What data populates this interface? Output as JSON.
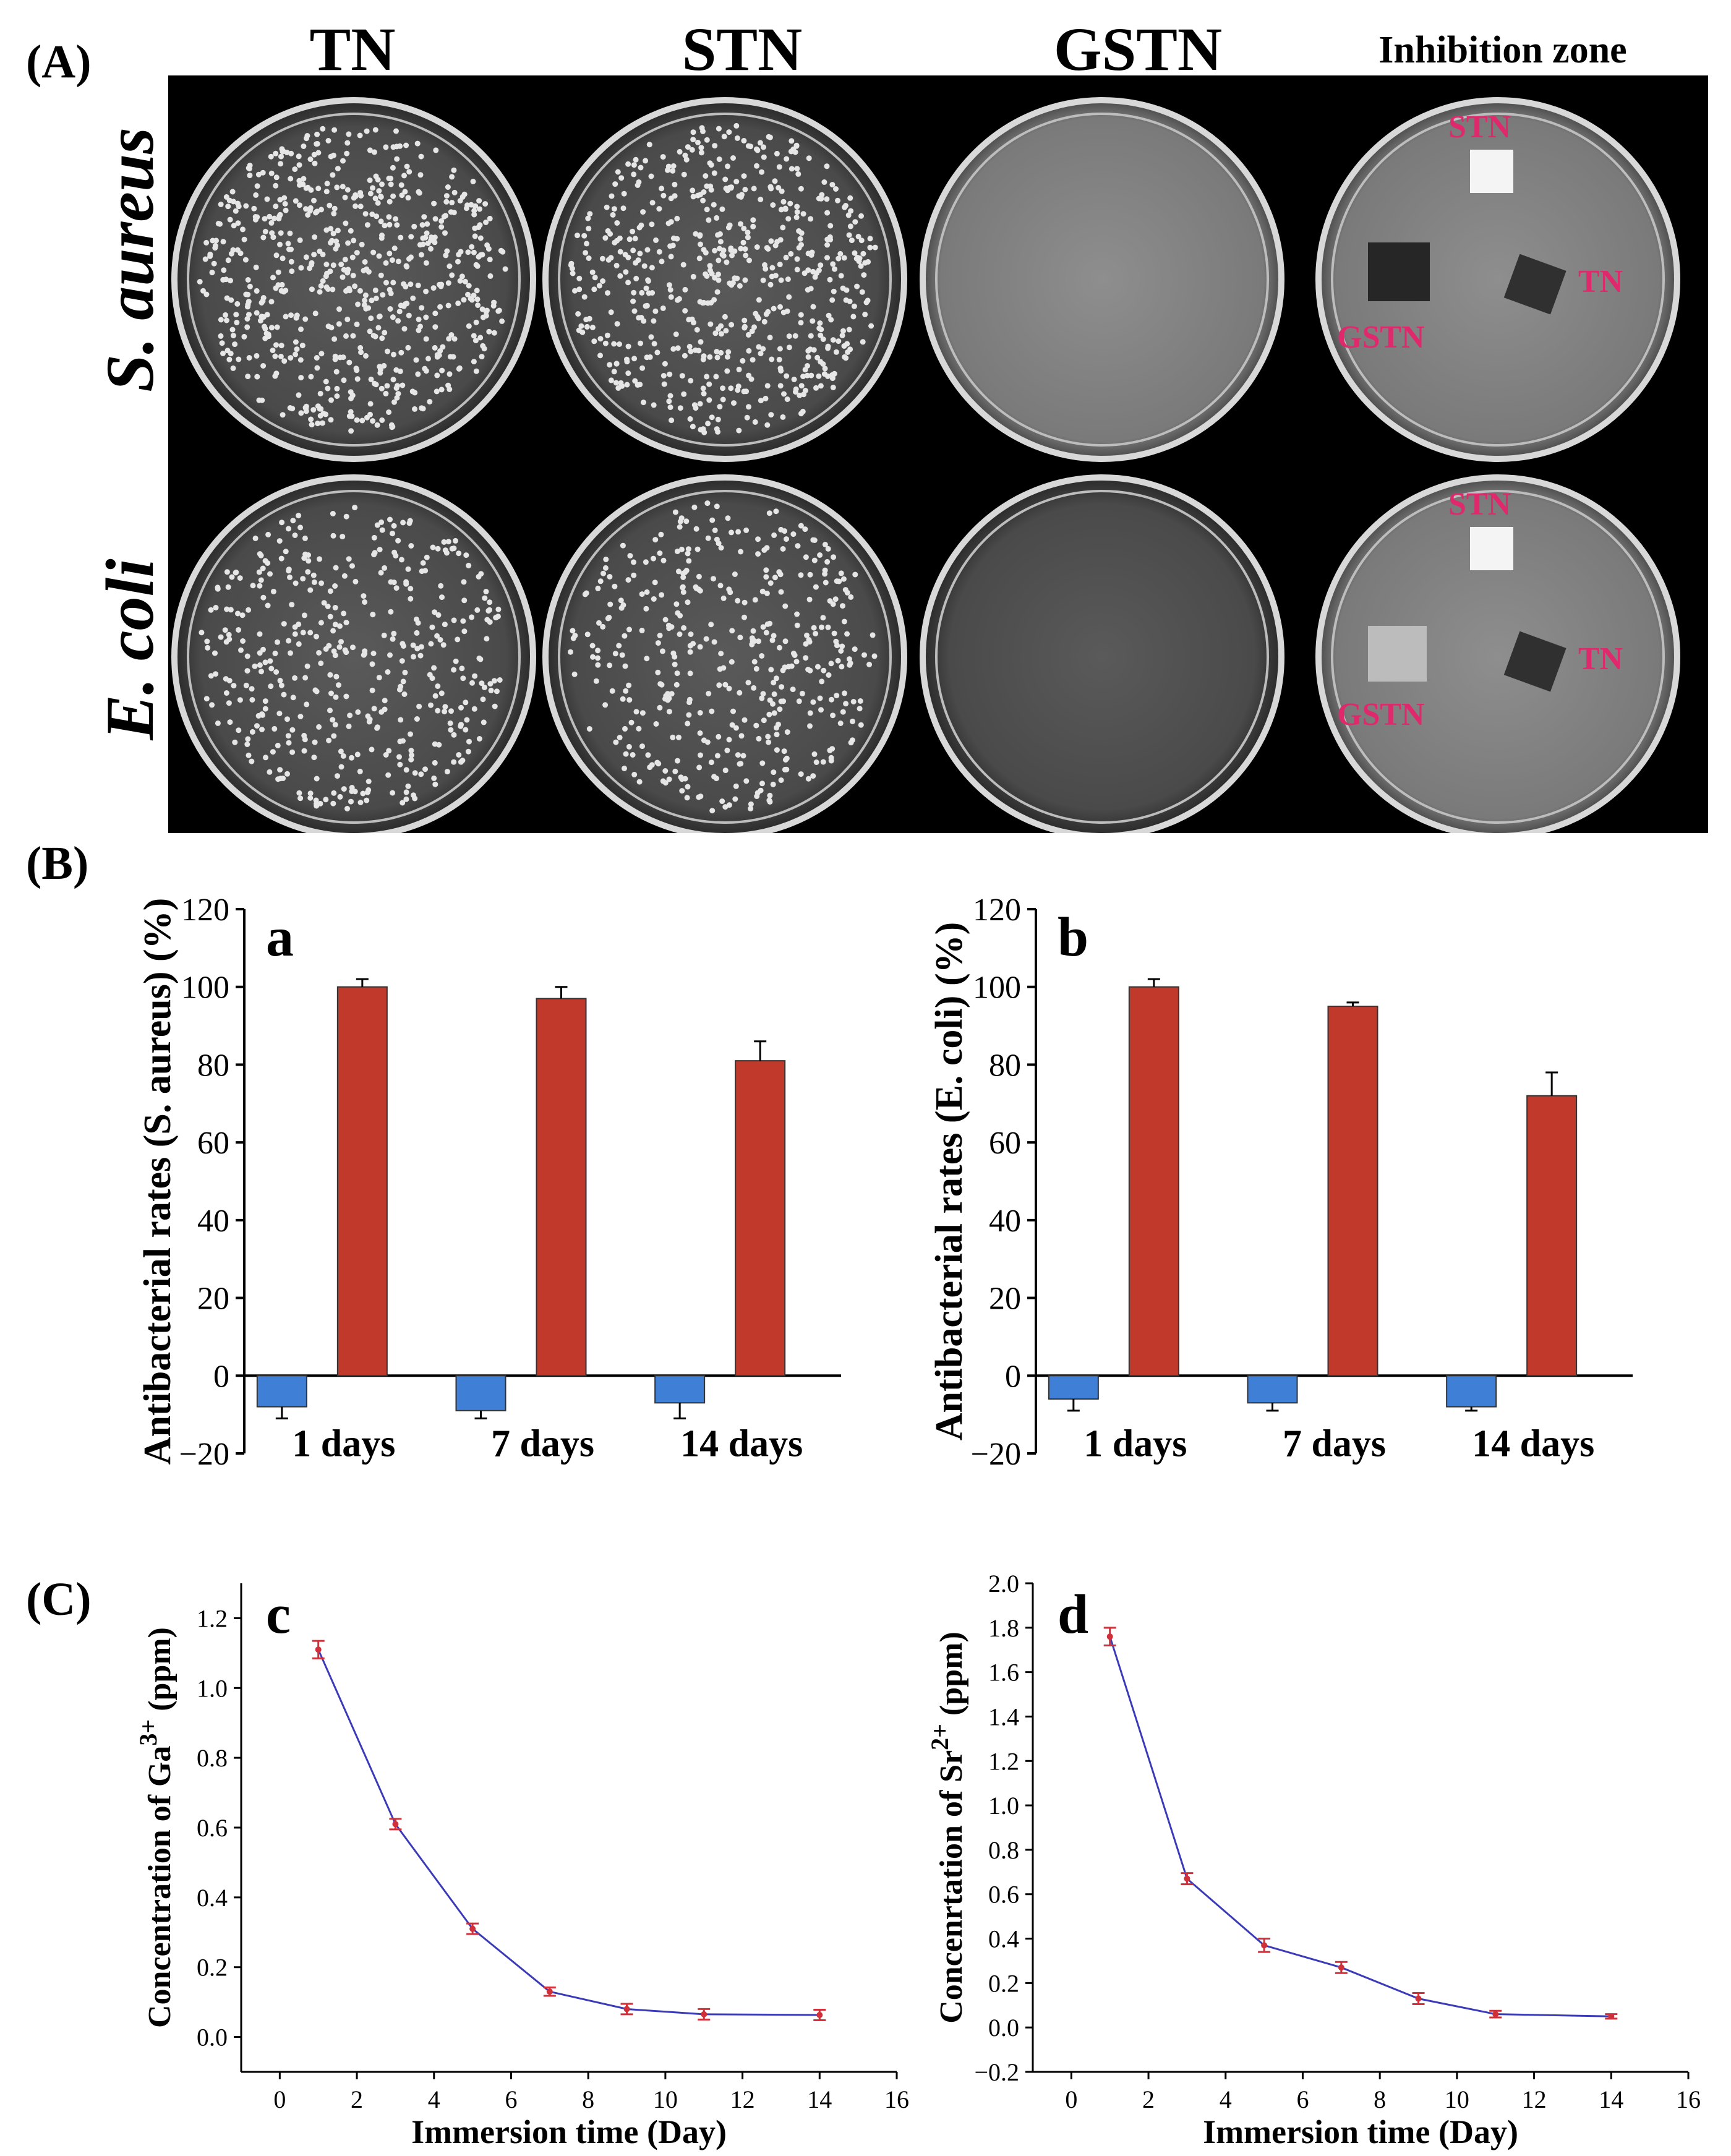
{
  "panels": {
    "A": "(A)",
    "B": "(B)",
    "C": "(C)"
  },
  "photo": {
    "column_headers": [
      "TN",
      "STN",
      "GSTN",
      "Inhibition zone"
    ],
    "row_headers": [
      "S. aureus",
      "E. coli"
    ],
    "zone_labels": [
      "STN",
      "TN",
      "GSTN"
    ],
    "zone_label_color": "#e0286c",
    "plate_background": "#000000"
  },
  "chart_data": [
    {
      "id": "a",
      "type": "bar",
      "panel_letter": "a",
      "title": "",
      "xlabel": "",
      "ylabel": "Antibacterial rates (S. aureus) (%)",
      "categories": [
        "1 days",
        "7 days",
        "14 days"
      ],
      "series": [
        {
          "color": "#3f7fd6",
          "values": [
            -8,
            -9,
            -7
          ],
          "errors": [
            3,
            2,
            4
          ]
        },
        {
          "color": "#c0392b",
          "values": [
            100,
            97,
            81
          ],
          "errors": [
            2,
            3,
            5
          ]
        }
      ],
      "ylim": [
        -20,
        120
      ],
      "yticks": [
        "−20",
        "0",
        "20",
        "40",
        "60",
        "80",
        "100",
        "120"
      ],
      "grid": false
    },
    {
      "id": "b",
      "type": "bar",
      "panel_letter": "b",
      "title": "",
      "xlabel": "",
      "ylabel": "Antibacterial rates (E. coli) (%)",
      "categories": [
        "1 days",
        "7 days",
        "14 days"
      ],
      "series": [
        {
          "color": "#3f7fd6",
          "values": [
            -6,
            -7,
            -8
          ],
          "errors": [
            3,
            2,
            1
          ]
        },
        {
          "color": "#c0392b",
          "values": [
            100,
            95,
            72
          ],
          "errors": [
            2,
            1,
            6
          ]
        }
      ],
      "ylim": [
        -20,
        120
      ],
      "yticks": [
        "−20",
        "0",
        "20",
        "40",
        "60",
        "80",
        "100",
        "120"
      ],
      "grid": false
    },
    {
      "id": "c",
      "type": "line",
      "panel_letter": "c",
      "title": "",
      "xlabel": "Immersion time (Day)",
      "ylabel": "Concentration of Ga3+ (ppm)",
      "ylabel_base": "Concentration of Ga",
      "ylabel_sup": "3+",
      "ylabel_unit": " (ppm)",
      "x": [
        1,
        3,
        5,
        7,
        9,
        11,
        14
      ],
      "y": [
        1.11,
        0.61,
        0.31,
        0.13,
        0.08,
        0.065,
        0.063
      ],
      "errors": [
        0.025,
        0.015,
        0.015,
        0.012,
        0.015,
        0.015,
        0.015
      ],
      "line_color": "#3b3bb8",
      "marker_color": "#d0303a",
      "xlim": [
        -1,
        16
      ],
      "xticks": [
        0,
        2,
        4,
        6,
        8,
        10,
        12,
        14,
        16
      ],
      "ylim": [
        -0.1,
        1.3
      ],
      "yticks": [
        "0.0",
        "0.2",
        "0.4",
        "0.6",
        "0.8",
        "1.0",
        "1.2"
      ],
      "grid": false
    },
    {
      "id": "d",
      "type": "line",
      "panel_letter": "d",
      "title": "",
      "xlabel": "Immersion time (Day)",
      "ylabel": "Concenrtation of Sr2+ (ppm)",
      "ylabel_base": "Concenrtation of Sr",
      "ylabel_sup": "2+",
      "ylabel_unit": " (ppm)",
      "x": [
        1,
        3,
        5,
        7,
        9,
        11,
        14
      ],
      "y": [
        1.76,
        0.67,
        0.37,
        0.27,
        0.13,
        0.06,
        0.05
      ],
      "errors": [
        0.04,
        0.025,
        0.03,
        0.025,
        0.025,
        0.015,
        0.01
      ],
      "line_color": "#3b3bb8",
      "marker_color": "#d0303a",
      "xlim": [
        -1,
        16
      ],
      "xticks": [
        0,
        2,
        4,
        6,
        8,
        10,
        12,
        14,
        16
      ],
      "ylim": [
        -0.2,
        2.0
      ],
      "yticks": [
        "−0.2",
        "0.0",
        "0.2",
        "0.4",
        "0.6",
        "0.8",
        "1.0",
        "1.2",
        "1.4",
        "1.6",
        "1.8",
        "2.0"
      ],
      "grid": false
    }
  ]
}
